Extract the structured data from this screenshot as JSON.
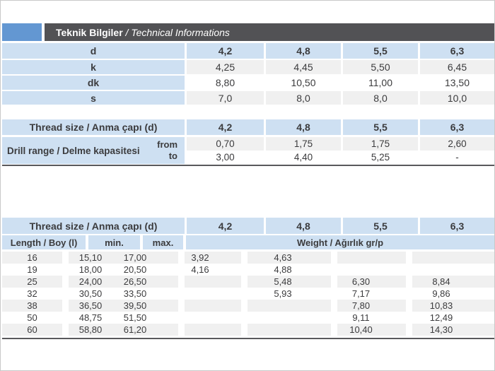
{
  "header": {
    "title_bold": "Teknik Bilgiler",
    "title_italic": " / Technical Informations"
  },
  "colors": {
    "accent_blue": "#6397d2",
    "title_bar_gray": "#525255",
    "cell_light_blue": "#cee0f2",
    "stripe_gray": "#f0f0f0",
    "rule_dark": "#59595c",
    "text": "#3b3b3d"
  },
  "spec_table": {
    "header": {
      "label": "d",
      "values": [
        "4,2",
        "4,8",
        "5,5",
        "6,3"
      ]
    },
    "rows": [
      {
        "label": "k",
        "values": [
          "4,25",
          "4,45",
          "5,50",
          "6,45"
        ]
      },
      {
        "label": "dk",
        "values": [
          "8,80",
          "10,50",
          "11,00",
          "13,50"
        ]
      },
      {
        "label": "s",
        "values": [
          "7,0",
          "8,0",
          "8,0",
          "10,0"
        ]
      }
    ]
  },
  "drill_table": {
    "header_label": "Thread size / Anma çapı (d)",
    "header_values": [
      "4,2",
      "4,8",
      "5,5",
      "6,3"
    ],
    "row_label": "Drill range / Delme kapasitesi",
    "from_label": "from",
    "to_label": "to",
    "from_values": [
      "0,70",
      "1,75",
      "1,75",
      "2,60"
    ],
    "to_values": [
      "3,00",
      "4,40",
      "5,25",
      "-"
    ]
  },
  "weight_table": {
    "header_label": "Thread size / Anma çapı (d)",
    "header_values": [
      "4,2",
      "4,8",
      "5,5",
      "6,3"
    ],
    "length_label": "Length / Boy (l)",
    "min_label": "min.",
    "max_label": "max.",
    "weight_label": "Weight / Ağırlık gr/p",
    "rows": [
      {
        "length": "16",
        "min": "15,10",
        "max": "17,00",
        "weights": [
          "3,92",
          "4,63",
          "",
          ""
        ]
      },
      {
        "length": "19",
        "min": "18,00",
        "max": "20,50",
        "weights": [
          "4,16",
          "4,88",
          "",
          ""
        ]
      },
      {
        "length": "25",
        "min": "24,00",
        "max": "26,50",
        "weights": [
          "",
          "5,48",
          "6,30",
          "8,84"
        ]
      },
      {
        "length": "32",
        "min": "30,50",
        "max": "33,50",
        "weights": [
          "",
          "5,93",
          "7,17",
          "9,86"
        ]
      },
      {
        "length": "38",
        "min": "36,50",
        "max": "39,50",
        "weights": [
          "",
          "",
          "7,80",
          "10,83"
        ]
      },
      {
        "length": "50",
        "min": "48,75",
        "max": "51,50",
        "weights": [
          "",
          "",
          "9,11",
          "12,49"
        ]
      },
      {
        "length": "60",
        "min": "58,80",
        "max": "61,20",
        "weights": [
          "",
          "",
          "10,40",
          "14,30"
        ]
      }
    ]
  }
}
